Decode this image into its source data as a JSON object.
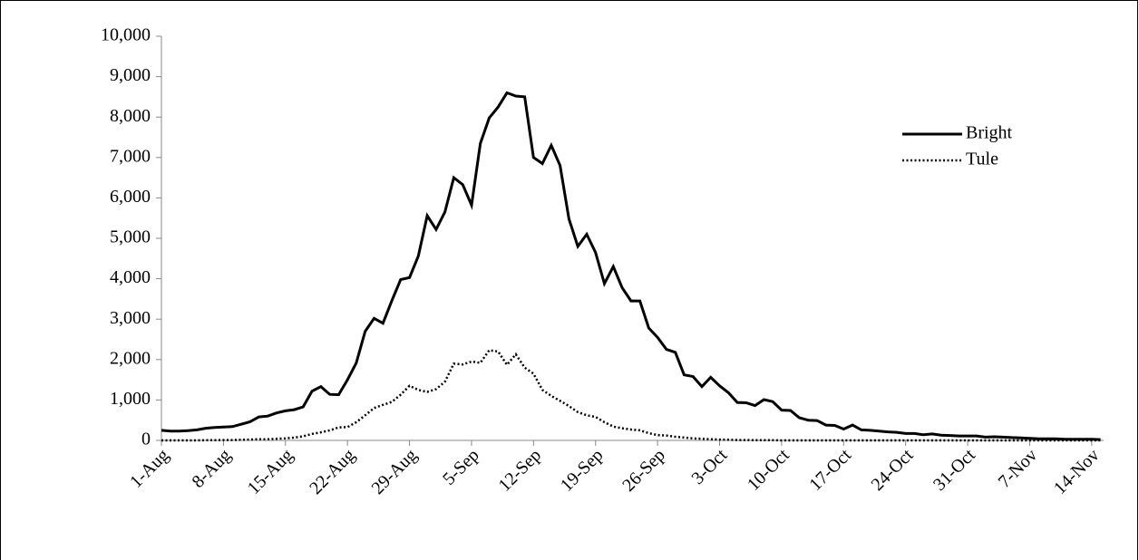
{
  "chart_data": {
    "type": "line",
    "categories": [
      "1-Aug",
      null,
      null,
      null,
      null,
      null,
      null,
      "8-Aug",
      null,
      null,
      null,
      null,
      null,
      null,
      "15-Aug",
      null,
      null,
      null,
      null,
      null,
      null,
      "22-Aug",
      null,
      null,
      null,
      null,
      null,
      null,
      "29-Aug",
      null,
      null,
      null,
      null,
      null,
      null,
      "5-Sep",
      null,
      null,
      null,
      null,
      null,
      null,
      "12-Sep",
      null,
      null,
      null,
      null,
      null,
      null,
      "19-Sep",
      null,
      null,
      null,
      null,
      null,
      null,
      "26-Sep",
      null,
      null,
      null,
      null,
      null,
      null,
      "3-Oct",
      null,
      null,
      null,
      null,
      null,
      null,
      "10-Oct",
      null,
      null,
      null,
      null,
      null,
      null,
      "17-Oct",
      null,
      null,
      null,
      null,
      null,
      null,
      "24-Oct",
      null,
      null,
      null,
      null,
      null,
      null,
      "31-Oct",
      null,
      null,
      null,
      null,
      null,
      null,
      "7-Nov",
      null,
      null,
      null,
      null,
      null,
      null,
      "14-Nov",
      null
    ],
    "series": [
      {
        "name": "Bright",
        "color": "#000000",
        "linestyle": "solid",
        "values": [
          250,
          230,
          230,
          240,
          260,
          300,
          320,
          330,
          340,
          400,
          460,
          580,
          600,
          680,
          730,
          760,
          830,
          1220,
          1330,
          1140,
          1130,
          1500,
          1920,
          2700,
          3020,
          2900,
          3450,
          3980,
          4030,
          4560,
          5560,
          5220,
          5650,
          6500,
          6330,
          5820,
          7350,
          7980,
          8250,
          8600,
          8520,
          8500,
          7000,
          6850,
          7300,
          6800,
          5480,
          4800,
          5100,
          4650,
          3880,
          4300,
          3780,
          3450,
          3450,
          2780,
          2550,
          2250,
          2180,
          1620,
          1580,
          1330,
          1560,
          1350,
          1180,
          940,
          930,
          860,
          1010,
          960,
          750,
          740,
          560,
          500,
          490,
          380,
          370,
          280,
          380,
          260,
          250,
          230,
          210,
          200,
          170,
          170,
          140,
          160,
          130,
          120,
          110,
          110,
          110,
          80,
          90,
          80,
          70,
          60,
          50,
          40,
          40,
          40,
          30,
          30,
          30,
          30,
          20
        ]
      },
      {
        "name": "Tule",
        "color": "#000000",
        "linestyle": "dotted",
        "values": [
          0,
          0,
          0,
          0,
          0,
          5,
          5,
          10,
          10,
          15,
          20,
          30,
          30,
          40,
          50,
          70,
          100,
          160,
          200,
          250,
          320,
          330,
          450,
          620,
          800,
          880,
          950,
          1130,
          1350,
          1250,
          1200,
          1270,
          1450,
          1900,
          1880,
          1950,
          1920,
          2230,
          2200,
          1870,
          2130,
          1800,
          1650,
          1250,
          1100,
          980,
          850,
          700,
          620,
          580,
          450,
          340,
          300,
          270,
          250,
          180,
          130,
          120,
          90,
          70,
          50,
          40,
          30,
          20,
          15,
          10,
          10,
          5,
          5,
          5,
          0,
          0,
          0,
          0,
          0,
          0,
          0,
          0,
          0,
          0,
          0,
          0,
          0,
          0,
          0,
          0,
          0,
          0,
          0,
          0,
          0,
          0,
          0,
          0,
          0,
          0,
          0,
          0,
          0,
          0,
          0,
          0,
          0,
          0,
          0,
          0,
          0
        ]
      }
    ],
    "ylim": [
      0,
      10000
    ],
    "yticks": [
      0,
      {
        "value": 1000,
        "label": "1,000"
      },
      {
        "value": 2000,
        "label": "2,000"
      },
      {
        "value": 3000,
        "label": "3,000"
      },
      {
        "value": 4000,
        "label": "4,000"
      },
      {
        "value": 5000,
        "label": "5,000"
      },
      {
        "value": 6000,
        "label": "6,000"
      },
      {
        "value": 7000,
        "label": "7,000"
      },
      {
        "value": 8000,
        "label": "8,000"
      },
      {
        "value": 9000,
        "label": "9,000"
      },
      {
        "value": 10000,
        "label": "10,000"
      }
    ],
    "grid": false,
    "legend": "upper right"
  }
}
